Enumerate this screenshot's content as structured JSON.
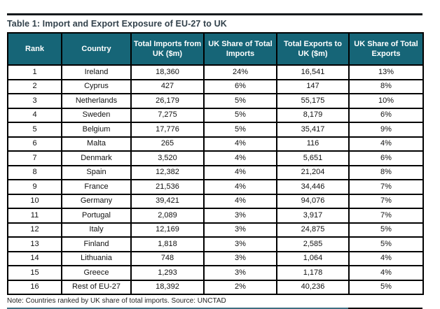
{
  "title": "Table 1: Import and Export Exposure of EU-27 to UK",
  "note": "Note: Countries ranked by UK share of total imports. Source: UNCTAD",
  "colors": {
    "header_bg": "#166577",
    "header_text": "#ffffff",
    "title_text": "#32414b",
    "cell_border": "#000000",
    "top_rule": "#15191c",
    "note_rule_teal": "#3e6e80",
    "note_rule_black": "#000000"
  },
  "table": {
    "columns": [
      "Rank",
      "Country",
      "Total Imports from UK ($m)",
      "UK Share of Total Imports",
      "Total Exports to UK ($m)",
      "UK Share of Total Exports"
    ],
    "rows": [
      [
        "1",
        "Ireland",
        "18,360",
        "24%",
        "16,541",
        "13%"
      ],
      [
        "2",
        "Cyprus",
        "427",
        "6%",
        "147",
        "8%"
      ],
      [
        "3",
        "Netherlands",
        "26,179",
        "5%",
        "55,175",
        "10%"
      ],
      [
        "4",
        "Sweden",
        "7,275",
        "5%",
        "8,179",
        "6%"
      ],
      [
        "5",
        "Belgium",
        "17,776",
        "5%",
        "35,417",
        "9%"
      ],
      [
        "6",
        "Malta",
        "265",
        "4%",
        "116",
        "4%"
      ],
      [
        "7",
        "Denmark",
        "3,520",
        "4%",
        "5,651",
        "6%"
      ],
      [
        "8",
        "Spain",
        "12,382",
        "4%",
        "21,204",
        "8%"
      ],
      [
        "9",
        "France",
        "21,536",
        "4%",
        "34,446",
        "7%"
      ],
      [
        "10",
        "Germany",
        "39,421",
        "4%",
        "94,076",
        "7%"
      ],
      [
        "11",
        "Portugal",
        "2,089",
        "3%",
        "3,917",
        "7%"
      ],
      [
        "12",
        "Italy",
        "12,169",
        "3%",
        "24,875",
        "5%"
      ],
      [
        "13",
        "Finland",
        "1,818",
        "3%",
        "2,585",
        "5%"
      ],
      [
        "14",
        "Lithuania",
        "748",
        "3%",
        "1,064",
        "4%"
      ],
      [
        "15",
        "Greece",
        "1,293",
        "3%",
        "1,178",
        "4%"
      ],
      [
        "16",
        "Rest of EU-27",
        "18,392",
        "2%",
        "40,236",
        "5%"
      ]
    ]
  }
}
